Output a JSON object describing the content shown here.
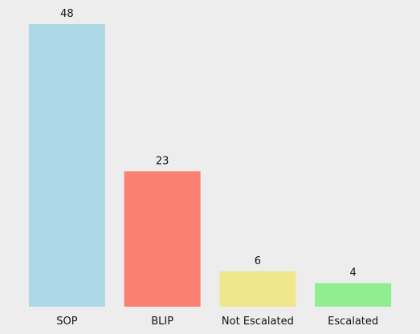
{
  "chart_data": {
    "type": "bar",
    "categories": [
      "SOP",
      "BLIP",
      "Not Escalated",
      "Escalated"
    ],
    "values": [
      48,
      23,
      6,
      4
    ],
    "colors": [
      "#add8e6",
      "#fa8072",
      "#f0e68c",
      "#90ee90"
    ],
    "title": "",
    "xlabel": "",
    "ylabel": "",
    "ylim": [
      0,
      48
    ],
    "grid": false,
    "show_value_labels": true,
    "background": "#ededed"
  }
}
